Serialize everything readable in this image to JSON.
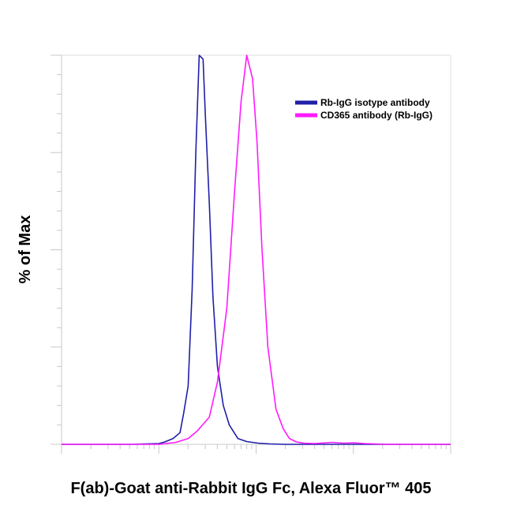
{
  "chart_data": {
    "type": "line",
    "title": "",
    "xlabel": "F(ab)-Goat anti-Rabbit IgG Fc, Alexa Fluor™ 405",
    "ylabel": "% of Max",
    "xscale": "log",
    "xlim": [
      0.1,
      1000
    ],
    "ylim": [
      0,
      100
    ],
    "grid": false,
    "legend_position": "top-right",
    "series": [
      {
        "name": "Rb-IgG isotype antibody",
        "color": "#1f1fa8",
        "x": [
          0.1,
          0.5,
          1.0,
          1.15,
          1.4,
          1.65,
          1.8,
          2.0,
          2.2,
          2.4,
          2.6,
          2.85,
          3.0,
          3.3,
          3.6,
          4.0,
          4.6,
          5.3,
          6.5,
          8.0,
          10.5,
          14,
          20,
          1000
        ],
        "y": [
          0,
          0,
          0.2,
          0.6,
          1.5,
          3,
          8,
          15,
          40,
          75,
          100,
          99,
          85,
          62,
          38,
          20,
          10,
          5,
          1.5,
          0.7,
          0.3,
          0.1,
          0,
          0
        ]
      },
      {
        "name": "CD365 antibody (Rb-IgG)",
        "color": "#ff1aff",
        "x": [
          0.1,
          1.0,
          1.5,
          2.0,
          2.5,
          3.3,
          4.0,
          5.0,
          6.0,
          7.0,
          8.0,
          9.2,
          10.2,
          11.5,
          13.2,
          16,
          19,
          22,
          26,
          31,
          40,
          60,
          80,
          100,
          130,
          170,
          230,
          1000
        ],
        "y": [
          0,
          0,
          0.5,
          1.5,
          3.5,
          7,
          16,
          35,
          65,
          88,
          100,
          94,
          78,
          50,
          25,
          9,
          4,
          1.5,
          0.6,
          0.3,
          0.2,
          0.5,
          0.3,
          0.4,
          0.2,
          0.1,
          0,
          0
        ]
      }
    ]
  }
}
